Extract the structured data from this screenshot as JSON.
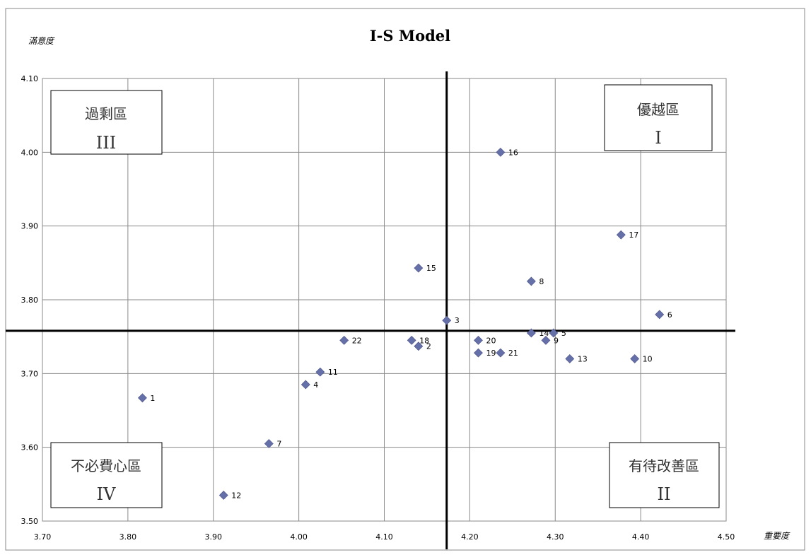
{
  "chart_data": {
    "type": "scatter",
    "title": "I-S Model",
    "xlabel": "重要度",
    "ylabel": "滿意度",
    "xlim": [
      3.7,
      4.5
    ],
    "ylim": [
      3.5,
      4.1
    ],
    "xticks": [
      "3.70",
      "3.80",
      "3.90",
      "4.00",
      "4.10",
      "4.20",
      "4.30",
      "4.40",
      "4.50"
    ],
    "yticks": [
      "3.50",
      "3.60",
      "3.70",
      "3.80",
      "3.90",
      "4.00",
      "4.10"
    ],
    "grid": true,
    "marker_color": "#6670a8",
    "divider_x": 4.173,
    "divider_y": 3.758,
    "points": [
      {
        "label": "1",
        "x": 3.817,
        "y": 3.667
      },
      {
        "label": "2",
        "x": 4.14,
        "y": 3.737
      },
      {
        "label": "3",
        "x": 4.173,
        "y": 3.772
      },
      {
        "label": "4",
        "x": 4.008,
        "y": 3.685
      },
      {
        "label": "5",
        "x": 4.298,
        "y": 3.755
      },
      {
        "label": "6",
        "x": 4.422,
        "y": 3.78
      },
      {
        "label": "7",
        "x": 3.965,
        "y": 3.605
      },
      {
        "label": "8",
        "x": 4.272,
        "y": 3.825
      },
      {
        "label": "9",
        "x": 4.289,
        "y": 3.745
      },
      {
        "label": "10",
        "x": 4.393,
        "y": 3.72
      },
      {
        "label": "11",
        "x": 4.025,
        "y": 3.702
      },
      {
        "label": "12",
        "x": 3.912,
        "y": 3.535
      },
      {
        "label": "13",
        "x": 4.317,
        "y": 3.72
      },
      {
        "label": "14",
        "x": 4.272,
        "y": 3.755
      },
      {
        "label": "15",
        "x": 4.14,
        "y": 3.843
      },
      {
        "label": "16",
        "x": 4.236,
        "y": 4.0
      },
      {
        "label": "17",
        "x": 4.377,
        "y": 3.888
      },
      {
        "label": "18",
        "x": 4.132,
        "y": 3.745
      },
      {
        "label": "19",
        "x": 4.21,
        "y": 3.728
      },
      {
        "label": "20",
        "x": 4.21,
        "y": 3.745
      },
      {
        "label": "21",
        "x": 4.236,
        "y": 3.728
      },
      {
        "label": "22",
        "x": 4.053,
        "y": 3.745
      }
    ],
    "quadrants": [
      {
        "id": "superior",
        "name": "優越區",
        "numeral": "I"
      },
      {
        "id": "excess",
        "name": "過剩區",
        "numeral": "III"
      },
      {
        "id": "unnecessary",
        "name": "不必費心區",
        "numeral": "IV"
      },
      {
        "id": "improve",
        "name": "有待改善區",
        "numeral": "II"
      }
    ]
  }
}
